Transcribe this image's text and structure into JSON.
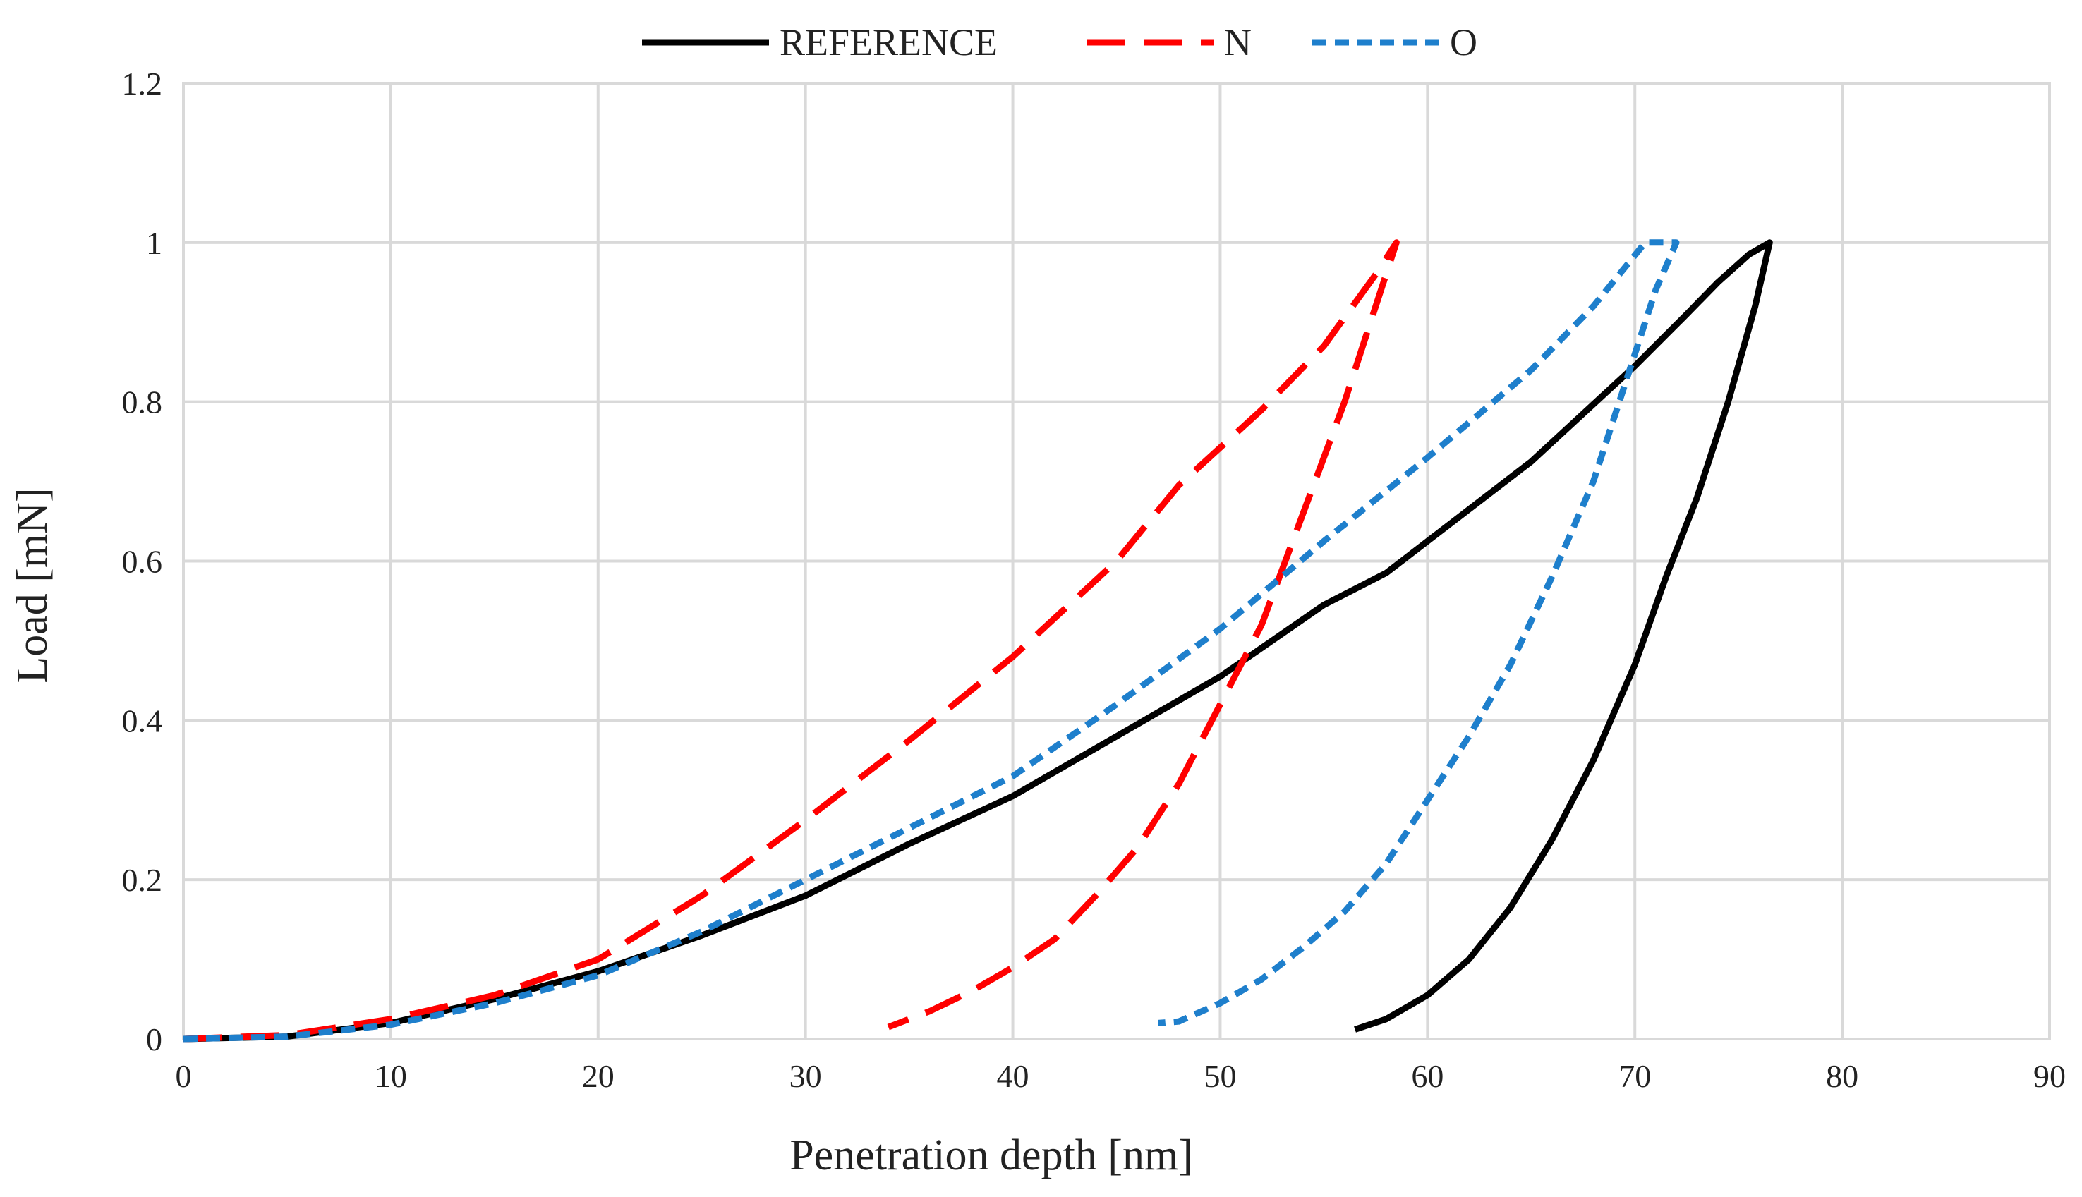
{
  "chart_data": {
    "type": "line",
    "title": "",
    "xlabel": "Penetration depth [nm]",
    "ylabel": "Load [mN]",
    "xlim": [
      0,
      90
    ],
    "ylim": [
      0,
      1.2
    ],
    "x_ticks": [
      0,
      10,
      20,
      30,
      40,
      50,
      60,
      70,
      80,
      90
    ],
    "x_tick_labels": [
      "0",
      "10",
      "20",
      "30",
      "40",
      "50",
      "60",
      "70",
      "80",
      "90"
    ],
    "y_ticks": [
      0,
      0.2,
      0.4,
      0.6,
      0.8,
      1,
      1.2
    ],
    "y_tick_labels": [
      "0",
      "0.2",
      "0.4",
      "0.6",
      "0.8",
      "1",
      "1.2"
    ],
    "grid": true,
    "legend_position": "top-center",
    "series": [
      {
        "name": "REFERENCE",
        "color": "#000000",
        "dash": "solid",
        "x": [
          0,
          5,
          10,
          15,
          20,
          25,
          30,
          35,
          40,
          45,
          50,
          55,
          58,
          60,
          65,
          70,
          72.5,
          74,
          75.5,
          76.5,
          76.5,
          75.8,
          74.5,
          73,
          71.5,
          70,
          68,
          66,
          64,
          62,
          60,
          58,
          56.5
        ],
        "y": [
          0,
          0.003,
          0.02,
          0.05,
          0.085,
          0.13,
          0.18,
          0.245,
          0.305,
          0.38,
          0.455,
          0.545,
          0.585,
          0.625,
          0.725,
          0.845,
          0.91,
          0.95,
          0.985,
          1.0,
          1.0,
          0.92,
          0.8,
          0.68,
          0.58,
          0.47,
          0.35,
          0.25,
          0.165,
          0.1,
          0.055,
          0.025,
          0.012
        ]
      },
      {
        "name": "N",
        "color": "#ff0000",
        "dash": "long-dash",
        "x": [
          0,
          5,
          10,
          15,
          20,
          25,
          30,
          35,
          40,
          45,
          48,
          52,
          55,
          57.5,
          58.5,
          58.5,
          57.5,
          56,
          54,
          52,
          50,
          48,
          46,
          44,
          42,
          40,
          38,
          36,
          34
        ],
        "y": [
          0,
          0.005,
          0.025,
          0.055,
          0.1,
          0.18,
          0.275,
          0.375,
          0.48,
          0.6,
          0.695,
          0.79,
          0.87,
          0.96,
          1.0,
          1.0,
          0.92,
          0.8,
          0.66,
          0.52,
          0.42,
          0.32,
          0.24,
          0.18,
          0.125,
          0.09,
          0.06,
          0.035,
          0.015
        ]
      },
      {
        "name": "O",
        "color": "#1e7fcc",
        "dash": "short-dash",
        "x": [
          0,
          5,
          10,
          15,
          20,
          25,
          30,
          35,
          40,
          45,
          50,
          55,
          60,
          65,
          68,
          70.5,
          72,
          72,
          71,
          69.5,
          68,
          66,
          64,
          62,
          60,
          58,
          56,
          54,
          52,
          50,
          48,
          47
        ],
        "y": [
          0,
          0.003,
          0.018,
          0.045,
          0.08,
          0.135,
          0.2,
          0.265,
          0.33,
          0.42,
          0.515,
          0.625,
          0.73,
          0.84,
          0.92,
          1.0,
          1.0,
          1.0,
          0.94,
          0.82,
          0.7,
          0.58,
          0.47,
          0.38,
          0.3,
          0.22,
          0.16,
          0.115,
          0.075,
          0.045,
          0.022,
          0.02
        ]
      }
    ]
  }
}
